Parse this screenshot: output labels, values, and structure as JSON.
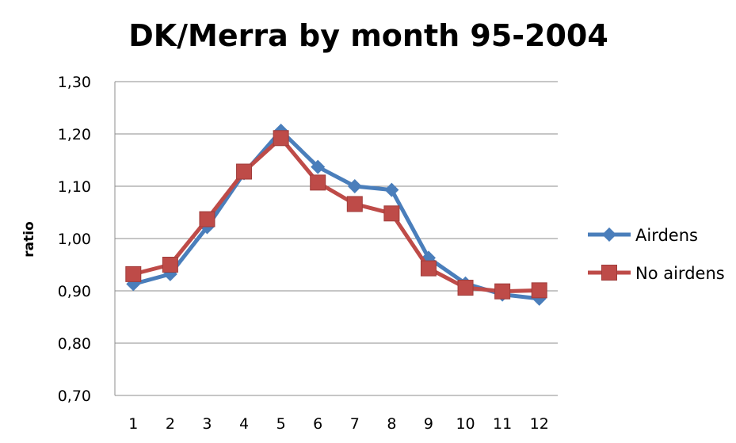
{
  "chart_data": {
    "type": "line",
    "title": "DK/Merra by month 95-2004",
    "xlabel": "",
    "ylabel": "ratio",
    "categories": [
      "1",
      "2",
      "3",
      "4",
      "5",
      "6",
      "7",
      "8",
      "9",
      "10",
      "11",
      "12"
    ],
    "y_tick_labels": [
      "0,70",
      "0,80",
      "0,90",
      "1,00",
      "1,10",
      "1,20",
      "1,30"
    ],
    "ylim": [
      0.7,
      1.3
    ],
    "y_ticks": [
      0.7,
      0.8,
      0.9,
      1.0,
      1.1,
      1.2,
      1.3
    ],
    "grid": true,
    "legend_position": "right",
    "series": [
      {
        "name": "Airdens",
        "color": "#4a7ebb",
        "marker": "diamond",
        "values": [
          0.913,
          0.932,
          1.022,
          1.125,
          1.206,
          1.137,
          1.1,
          1.093,
          0.963,
          0.914,
          0.893,
          0.885
        ]
      },
      {
        "name": "No airdens",
        "color": "#be4b48",
        "marker": "square",
        "values": [
          0.932,
          0.95,
          1.037,
          1.128,
          1.192,
          1.107,
          1.066,
          1.048,
          0.943,
          0.906,
          0.899,
          0.901
        ]
      }
    ]
  }
}
